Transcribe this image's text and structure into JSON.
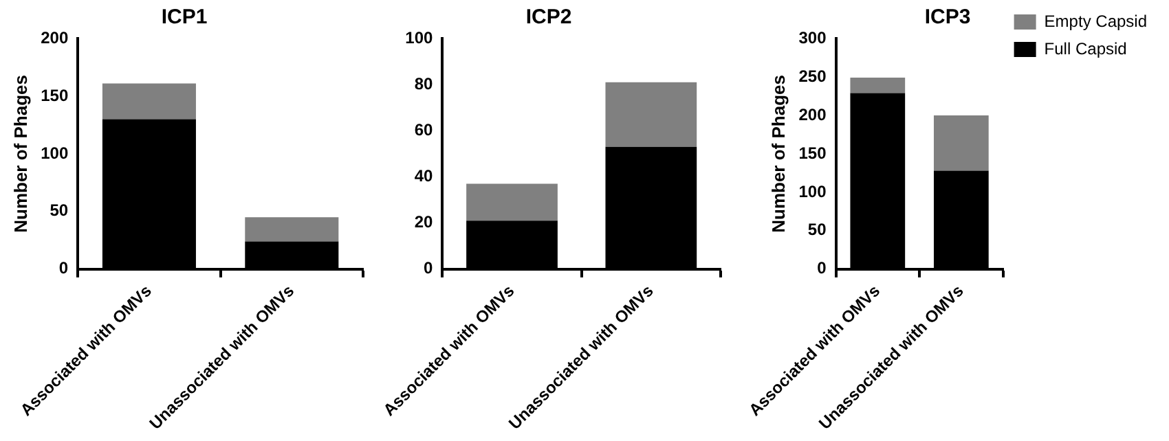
{
  "chart_data": [
    {
      "type": "bar",
      "title": "ICP1",
      "ylabel": "Number of Phages",
      "categories": [
        "Associated with OMVs",
        "Unassociated with OMVs"
      ],
      "stacked": true,
      "series": [
        {
          "color": "#000000",
          "values": [
            130,
            24
          ]
        },
        {
          "color": "#808080",
          "values": [
            31,
            21
          ]
        }
      ],
      "ylim": [
        0,
        200
      ],
      "yticks": [
        0,
        50,
        100,
        150,
        200
      ],
      "grid": false,
      "legend": false
    },
    {
      "type": "bar",
      "title": "ICP2",
      "categories": [
        "Associated with OMVs",
        "Unassociated with OMVs"
      ],
      "stacked": true,
      "series": [
        {
          "color": "#000000",
          "values": [
            21,
            53
          ]
        },
        {
          "color": "#808080",
          "values": [
            16,
            28
          ]
        }
      ],
      "ylim": [
        0,
        100
      ],
      "yticks": [
        0,
        20,
        40,
        60,
        80,
        100
      ],
      "grid": false,
      "legend": false
    },
    {
      "type": "bar",
      "title": "ICP3",
      "ylabel": "Number of Phages",
      "categories": [
        "Associated with OMVs",
        "Unassociated with OMVs"
      ],
      "stacked": true,
      "series": [
        {
          "name": "Full Capsid",
          "color": "#000000",
          "values": [
            229,
            128
          ]
        },
        {
          "name": "Empty Capsid",
          "color": "#808080",
          "values": [
            20,
            72
          ]
        }
      ],
      "ylim": [
        0,
        300
      ],
      "yticks": [
        0,
        50,
        100,
        150,
        200,
        250,
        300
      ],
      "grid": false,
      "legend": "right"
    }
  ]
}
